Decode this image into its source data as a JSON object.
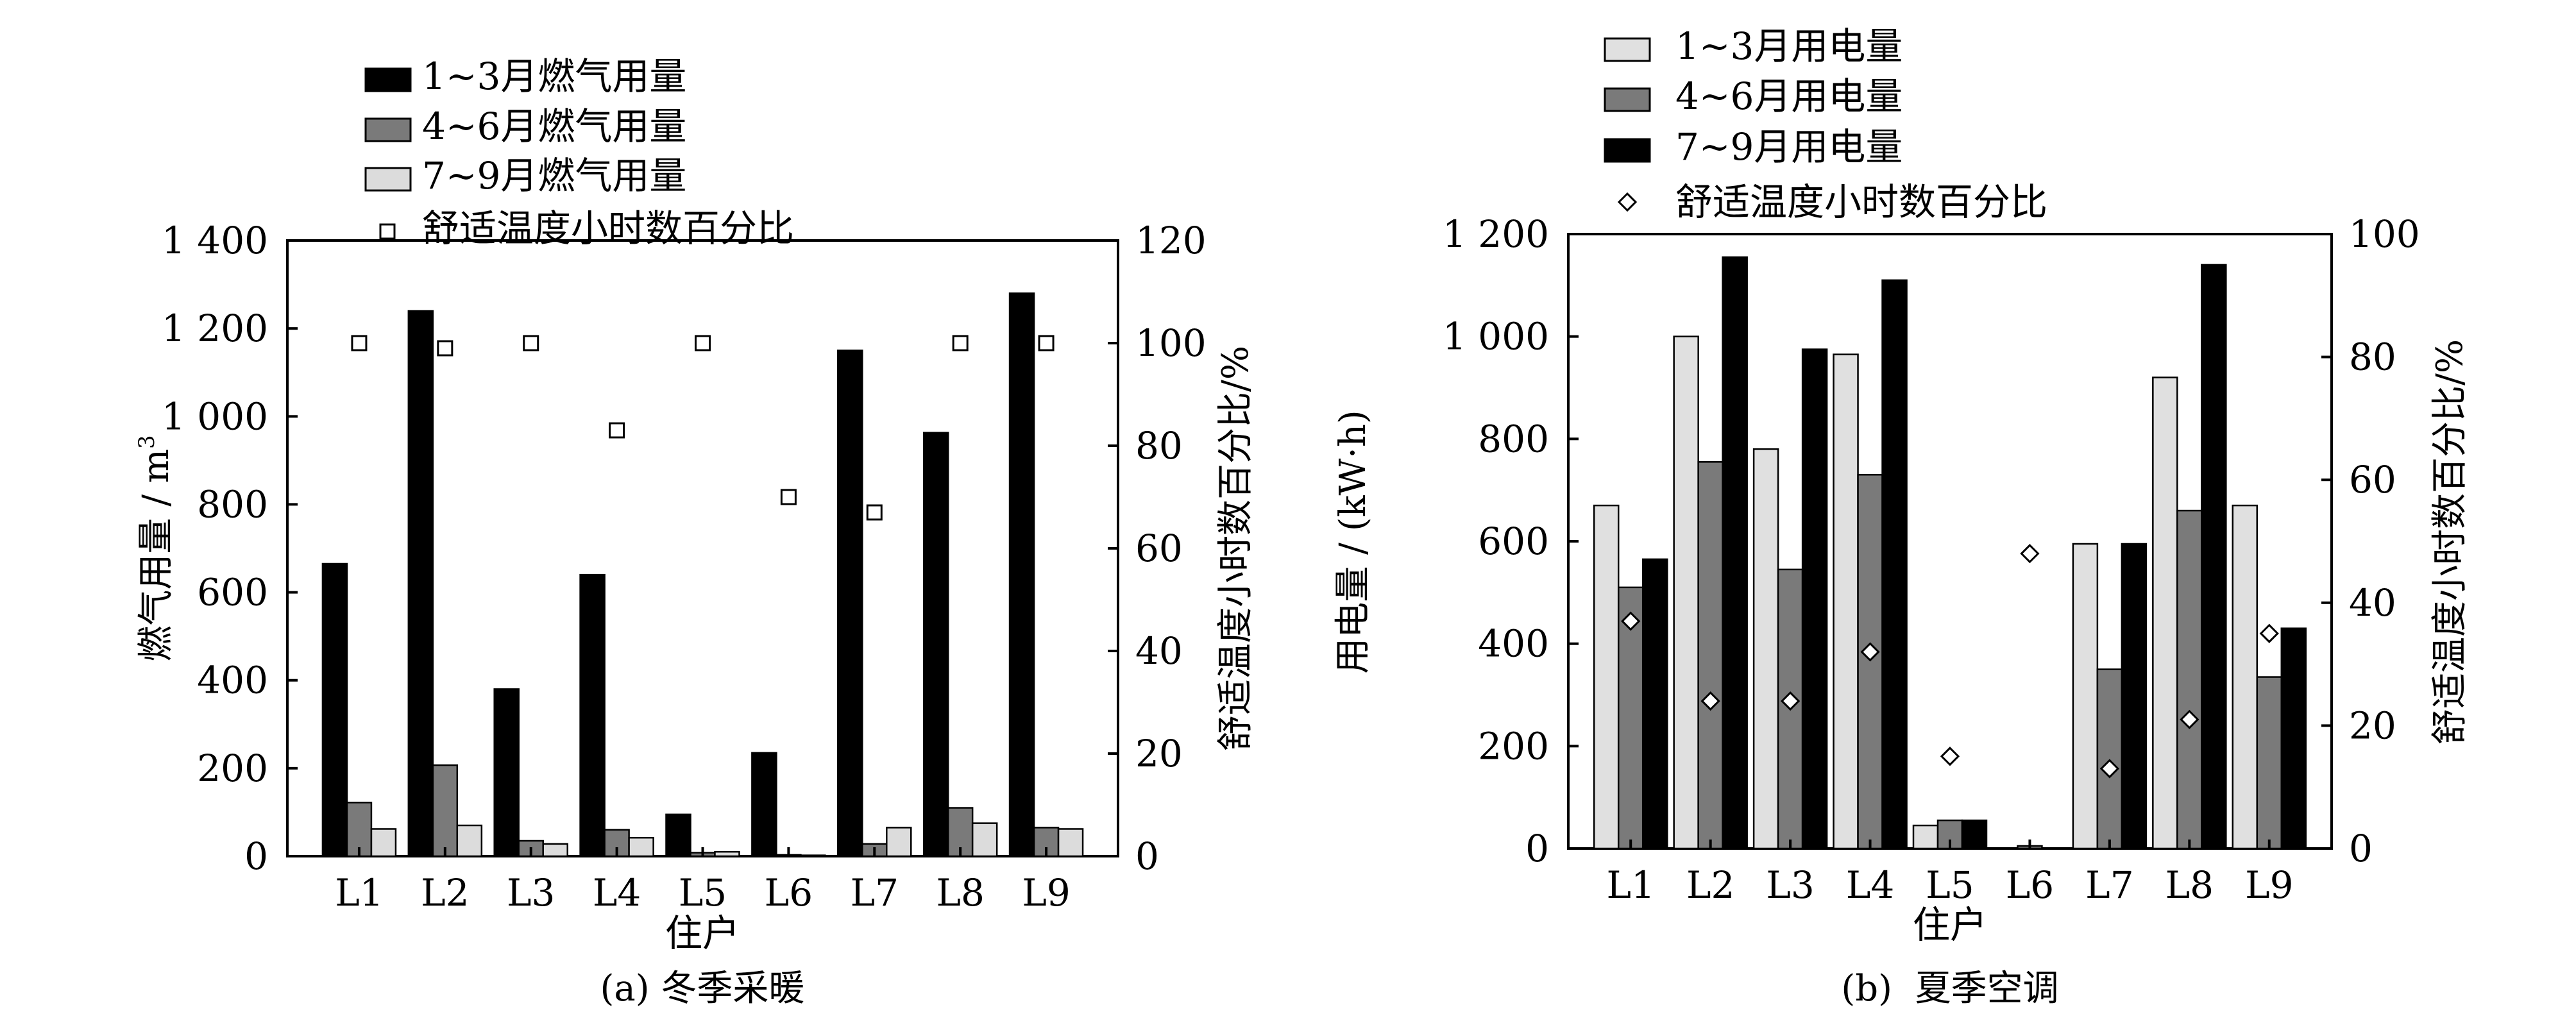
{
  "chart_data": [
    {
      "type": "bar",
      "caption": "(a) 冬季采暖",
      "categories": [
        "L1",
        "L2",
        "L3",
        "L4",
        "L5",
        "L6",
        "L7",
        "L8",
        "L9"
      ],
      "xlabel": "住户",
      "ylabel": "燃气用量 / m",
      "ylabel_sup": "3",
      "y2label": "舒适温度小时数百分比/%",
      "ylim": [
        0,
        1400
      ],
      "y2lim": [
        0,
        120
      ],
      "yticks": [
        0,
        200,
        400,
        600,
        800,
        1000,
        1200,
        1400
      ],
      "ytick_labels": [
        "0",
        "200",
        "400",
        "600",
        "800",
        "1 000",
        "1 200",
        "1 400"
      ],
      "y2ticks": [
        0,
        20,
        40,
        60,
        80,
        100,
        120
      ],
      "y2tick_labels": [
        "0",
        "20",
        "40",
        "60",
        "80",
        "100",
        "120"
      ],
      "series": [
        {
          "name": "1~3月燃气用量",
          "color": "#000000",
          "values": [
            665,
            1240,
            380,
            640,
            95,
            235,
            1150,
            963,
            1280
          ]
        },
        {
          "name": "4~6月燃气用量",
          "color": "#7a7a7a",
          "values": [
            122,
            207,
            35,
            60,
            8,
            3,
            28,
            110,
            65
          ]
        },
        {
          "name": "7~9月燃气用量",
          "color": "#dcdcdc",
          "values": [
            62,
            70,
            28,
            42,
            10,
            2,
            65,
            75,
            62
          ]
        }
      ],
      "scatter": {
        "name": "舒适温度小时数百分比",
        "marker": "square",
        "values": [
          100,
          99,
          100,
          83,
          100,
          70,
          67,
          100,
          100
        ]
      }
    },
    {
      "type": "bar",
      "caption": "(b)  夏季空调",
      "categories": [
        "L1",
        "L2",
        "L3",
        "L4",
        "L5",
        "L6",
        "L7",
        "L8",
        "L9"
      ],
      "xlabel": "住户",
      "ylabel": "用电量 / (kW·h)",
      "y2label": "舒适温度小时数百分比/%",
      "ylim": [
        0,
        1200
      ],
      "y2lim": [
        0,
        100
      ],
      "yticks": [
        0,
        200,
        400,
        600,
        800,
        1000,
        1200
      ],
      "ytick_labels": [
        "0",
        "200",
        "400",
        "600",
        "800",
        "1 000",
        "1 200"
      ],
      "y2ticks": [
        0,
        20,
        40,
        60,
        80,
        100
      ],
      "y2tick_labels": [
        "0",
        "20",
        "40",
        "60",
        "80",
        "100"
      ],
      "series": [
        {
          "name": "1~3月用电量",
          "color": "#e0e0e0",
          "values": [
            670,
            1000,
            780,
            965,
            45,
            0,
            595,
            920,
            670
          ]
        },
        {
          "name": "4~6月用电量",
          "color": "#7a7a7a",
          "values": [
            510,
            755,
            545,
            730,
            55,
            5,
            350,
            660,
            335
          ]
        },
        {
          "name": "7~9月用电量",
          "color": "#000000",
          "values": [
            565,
            1155,
            975,
            1110,
            55,
            0,
            595,
            1140,
            430
          ]
        }
      ],
      "scatter": {
        "name": "舒适温度小时数百分比",
        "marker": "diamond",
        "values": [
          37,
          24,
          24,
          32,
          15,
          48,
          13,
          21,
          35
        ]
      }
    }
  ]
}
